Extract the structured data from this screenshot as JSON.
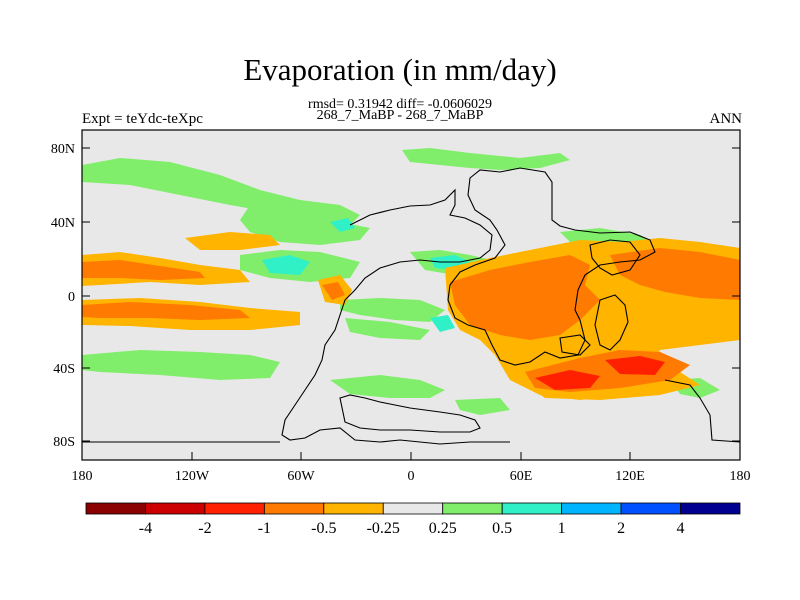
{
  "title": "Evaporation (in mm/day)",
  "stats_line": "rmsd= 0.31942 diff= -0.0606029",
  "case_line": "268_7_MaBP - 268_7_MaBP",
  "left_label": "Expt = teYdc-teXpc",
  "right_label": "ANN",
  "y_ticks": [
    "80N",
    "40N",
    "0",
    "40S",
    "80S"
  ],
  "x_ticks": [
    "180",
    "120W",
    "60W",
    "0",
    "60E",
    "120E",
    "180"
  ],
  "colorbar": {
    "colors": [
      "#8b0000",
      "#cc0000",
      "#ff2000",
      "#ff7a00",
      "#ffb400",
      "#e8e8e8",
      "#80ee6a",
      "#30f0c8",
      "#00b4ff",
      "#0050ff",
      "#000090"
    ],
    "labels": [
      "-4",
      "-2",
      "-1",
      "-0.5",
      "-0.25",
      "0.25",
      "0.5",
      "1",
      "2",
      "4"
    ]
  },
  "palette": {
    "neutral": "#e8e8e8",
    "light_green": "#80ee6a",
    "cyan": "#30f0c8",
    "yellow_orange": "#ffb400",
    "orange": "#ff7a00",
    "red": "#ff2000"
  }
}
